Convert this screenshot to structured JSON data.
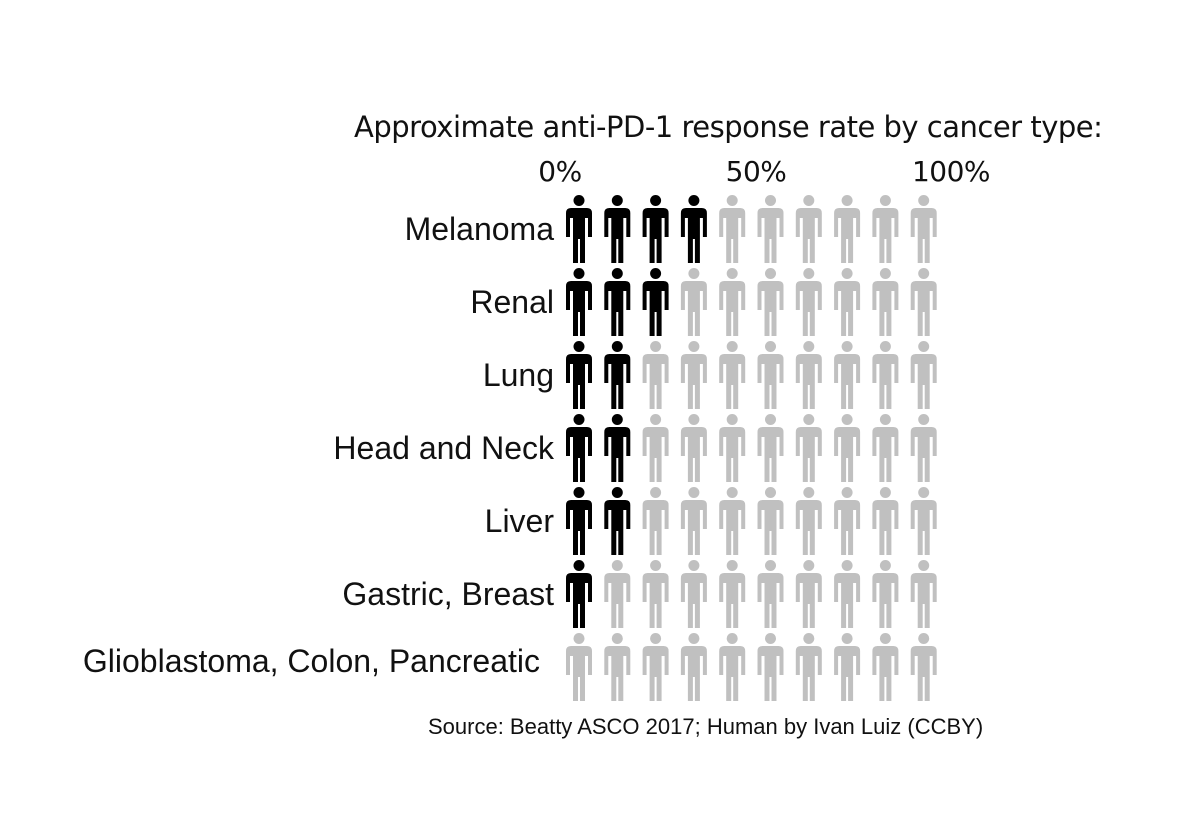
{
  "chart_data": {
    "type": "pictogram",
    "title": "Approximate anti-PD-1 response rate by cancer type:",
    "x_ticks": [
      "0%",
      "50%",
      "100%"
    ],
    "icons_per_row": 10,
    "icon_unit_percent": 10,
    "colors": {
      "responder": "#000000",
      "non_responder": "#c0c0c0"
    },
    "categories": [
      "Melanoma",
      "Renal",
      "Lung",
      "Head and Neck",
      "Liver",
      "Gastric, Breast",
      "Glioblastoma, Colon, Pancreatic"
    ],
    "values": [
      40,
      30,
      20,
      20,
      20,
      10,
      0
    ],
    "source": "Source: Beatty ASCO 2017; Human by Ivan Luiz (CCBY)"
  }
}
